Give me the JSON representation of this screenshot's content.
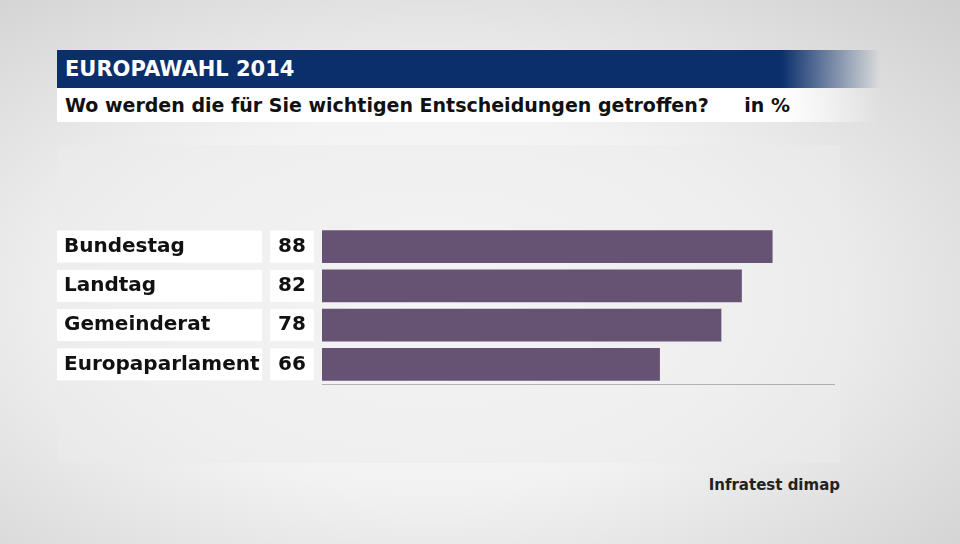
{
  "chart_data": {
    "type": "bar",
    "title": "EUROPAWAHL 2014",
    "subtitle": "Wo werden die für Sie wichtigen Entscheidungen getroffen?",
    "unit": "in %",
    "source": "Infratest dimap",
    "categories": [
      "Bundestag",
      "Landtag",
      "Gemeinderat",
      "Europaparlament"
    ],
    "values": [
      88,
      82,
      78,
      66
    ],
    "color": "#665273",
    "xlim": [
      0,
      100
    ],
    "orientation": "horizontal",
    "data_labels": true,
    "tick_labels": false,
    "grid": false
  }
}
